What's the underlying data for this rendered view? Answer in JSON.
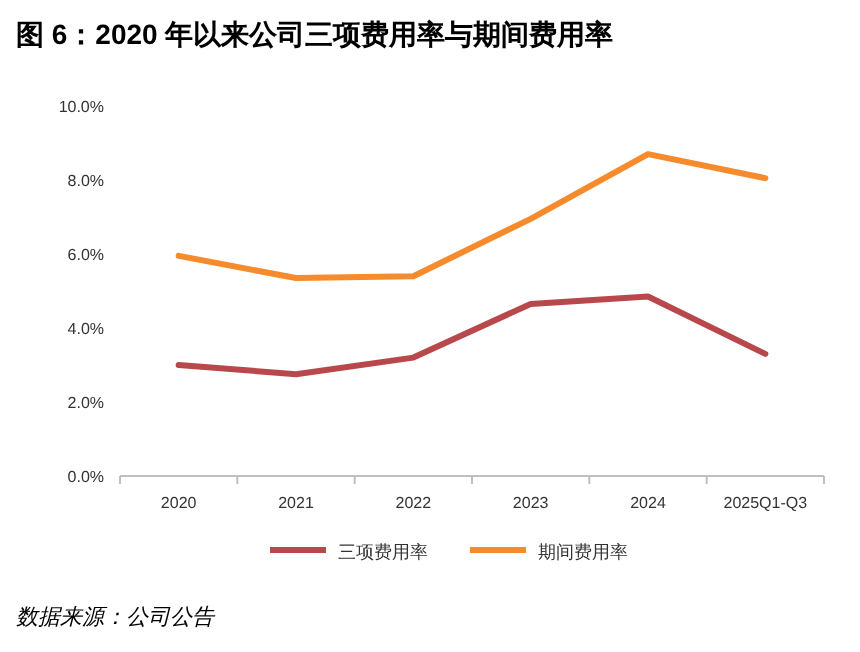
{
  "chart_data": {
    "type": "line",
    "title": "图 6：2020 年以来公司三项费用率与期间费用率",
    "categories": [
      "2020",
      "2021",
      "2022",
      "2023",
      "2024",
      "2025Q1-Q3"
    ],
    "series": [
      {
        "name": "三项费用率",
        "color": "#b8484c",
        "values": [
          3.0,
          2.75,
          3.2,
          4.65,
          4.85,
          3.3
        ]
      },
      {
        "name": "期间费用率",
        "color": "#f68b2e",
        "values": [
          5.95,
          5.35,
          5.4,
          6.95,
          8.7,
          8.05
        ]
      }
    ],
    "ylim": [
      0,
      10
    ],
    "yticks": [
      {
        "value": 0,
        "label": "0.0%"
      },
      {
        "value": 2,
        "label": "2.0%"
      },
      {
        "value": 4,
        "label": "4.0%"
      },
      {
        "value": 6,
        "label": "6.0%"
      },
      {
        "value": 8,
        "label": "8.0%"
      },
      {
        "value": 10,
        "label": "10.0%"
      }
    ],
    "legend": "bottom",
    "marker": "none",
    "line_style": "solid",
    "annotations": [
      "数据来源：公司公告"
    ]
  }
}
